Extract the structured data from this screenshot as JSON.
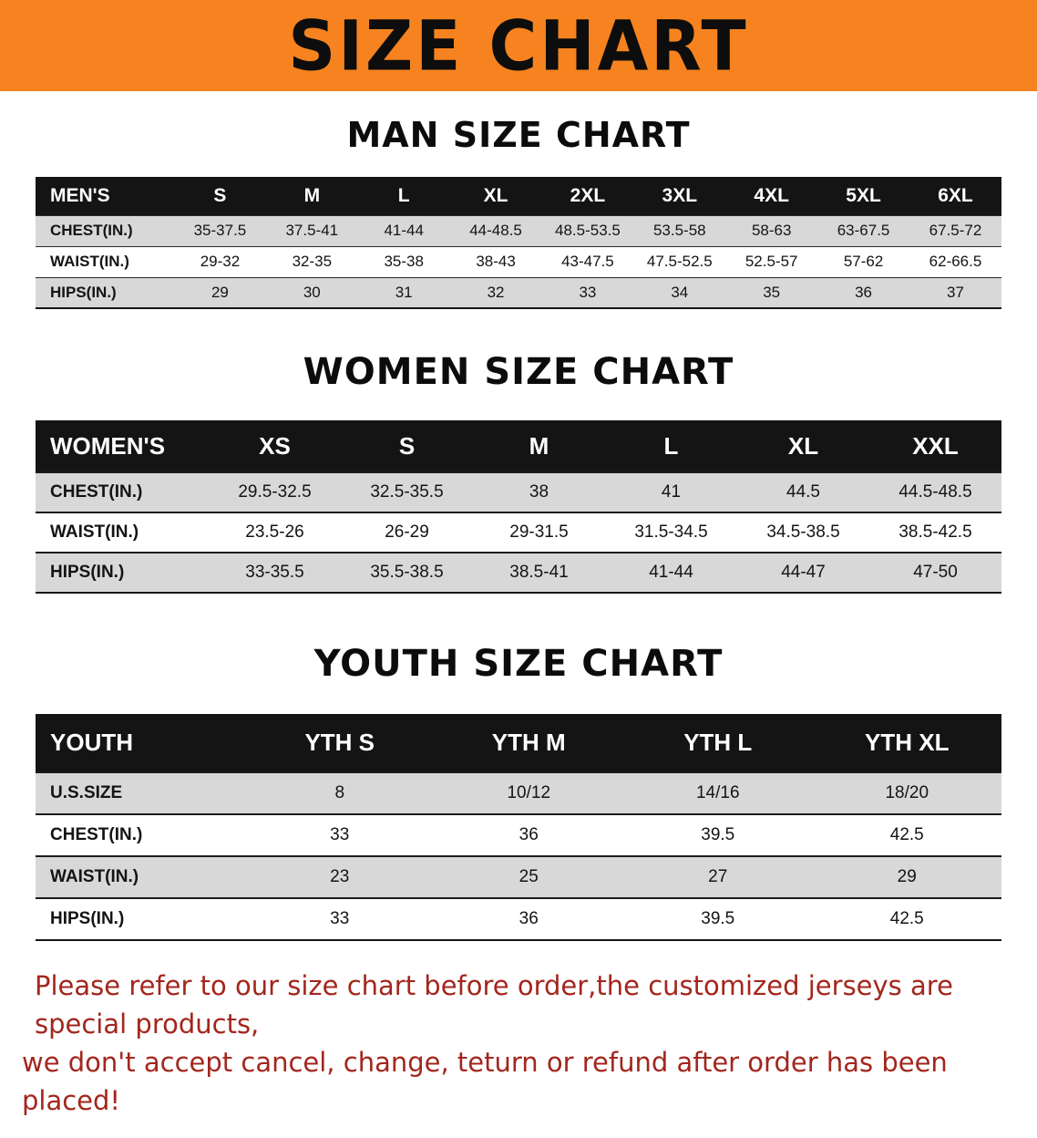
{
  "banner": {
    "title": "SIZE CHART"
  },
  "colors": {
    "banner_bg": "#f6831f",
    "table_header_bg": "#141414",
    "row_alt_bg": "#d8d8d8",
    "footer_text": "#a3261d"
  },
  "footer": {
    "line1": "Please refer to our size chart before order,the customized jerseys are special products,",
    "line2": "we don't accept cancel, change, teturn or refund after order has been placed!"
  },
  "chart_data": [
    {
      "type": "table",
      "title": "MAN SIZE CHART",
      "columns": [
        "MEN'S",
        "S",
        "M",
        "L",
        "XL",
        "2XL",
        "3XL",
        "4XL",
        "5XL",
        "6XL"
      ],
      "rows": [
        [
          "CHEST(IN.)",
          "35-37.5",
          "37.5-41",
          "41-44",
          "44-48.5",
          "48.5-53.5",
          "53.5-58",
          "58-63",
          "63-67.5",
          "67.5-72"
        ],
        [
          "WAIST(IN.)",
          "29-32",
          "32-35",
          "35-38",
          "38-43",
          "43-47.5",
          "47.5-52.5",
          "52.5-57",
          "57-62",
          "62-66.5"
        ],
        [
          "HIPS(IN.)",
          "29",
          "30",
          "31",
          "32",
          "33",
          "34",
          "35",
          "36",
          "37"
        ]
      ]
    },
    {
      "type": "table",
      "title": "WOMEN SIZE CHART",
      "columns": [
        "WOMEN'S",
        "XS",
        "S",
        "M",
        "L",
        "XL",
        "XXL"
      ],
      "rows": [
        [
          "CHEST(IN.)",
          "29.5-32.5",
          "32.5-35.5",
          "38",
          "41",
          "44.5",
          "44.5-48.5"
        ],
        [
          "WAIST(IN.)",
          "23.5-26",
          "26-29",
          "29-31.5",
          "31.5-34.5",
          "34.5-38.5",
          "38.5-42.5"
        ],
        [
          "HIPS(IN.)",
          "33-35.5",
          "35.5-38.5",
          "38.5-41",
          "41-44",
          "44-47",
          "47-50"
        ]
      ]
    },
    {
      "type": "table",
      "title": "YOUTH SIZE CHART",
      "columns": [
        "YOUTH",
        "YTH S",
        "YTH M",
        "YTH L",
        "YTH XL"
      ],
      "rows": [
        [
          "U.S.SIZE",
          "8",
          "10/12",
          "14/16",
          "18/20"
        ],
        [
          "CHEST(IN.)",
          "33",
          "36",
          "39.5",
          "42.5"
        ],
        [
          "WAIST(IN.)",
          "23",
          "25",
          "27",
          "29"
        ],
        [
          "HIPS(IN.)",
          "33",
          "36",
          "39.5",
          "42.5"
        ]
      ]
    }
  ]
}
